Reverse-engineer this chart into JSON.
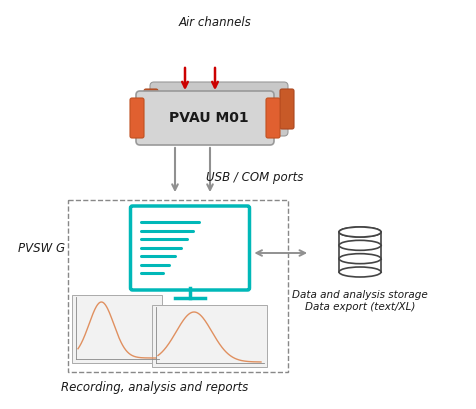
{
  "bg_color": "#ffffff",
  "air_channels_label": "Air channels",
  "usb_label": "USB / COM ports",
  "pvsw_label": "PVSW G",
  "pvau_label": "PVAU M01",
  "db_label1": "Data and analysis storage",
  "db_label2": "Data export (text/XL)",
  "recording_label": "Recording, analysis and reports",
  "arrow_red_color": "#cc0000",
  "arrow_gray_color": "#909090",
  "device_body_color": "#d5d5d5",
  "device_cap_color": "#e06030",
  "monitor_screen_color": "#00b8b8",
  "plot_line_color": "#e09060",
  "dashed_box_color": "#888888",
  "font_color": "#1a1a1a",
  "db_icon_color": "#444444"
}
